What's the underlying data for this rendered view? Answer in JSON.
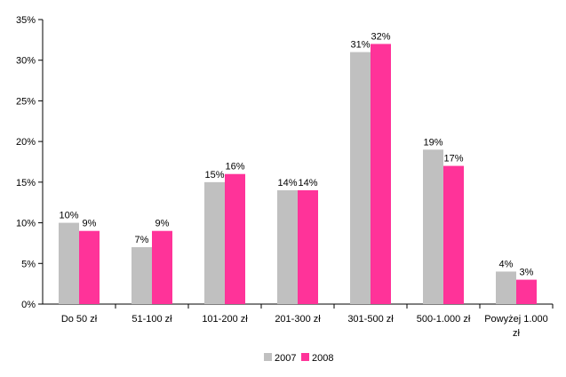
{
  "chart_data": {
    "type": "bar",
    "title": "",
    "xlabel": "",
    "ylabel": "",
    "ylim": [
      0,
      35
    ],
    "y_tick_step": 5,
    "y_tick_labels": [
      "0%",
      "5%",
      "10%",
      "15%",
      "20%",
      "25%",
      "30%",
      "35%"
    ],
    "grid": false,
    "legend_position": "bottom-center",
    "categories": [
      [
        "Do 50 zł"
      ],
      [
        "51-100 zł"
      ],
      [
        "101-200 zł"
      ],
      [
        "201-300 zł"
      ],
      [
        "301-500 zł"
      ],
      [
        "500-1.000 zł"
      ],
      [
        "Powyżej 1.000",
        "zł"
      ]
    ],
    "series": [
      {
        "name": "2007",
        "color": "#c0c0c0",
        "values": [
          10,
          7,
          15,
          14,
          31,
          19,
          4
        ],
        "labels": [
          "10%",
          "7%",
          "15%",
          "14%",
          "31%",
          "19%",
          "4%"
        ]
      },
      {
        "name": "2008",
        "color": "#ff3399",
        "values": [
          9,
          9,
          16,
          14,
          32,
          17,
          3
        ],
        "labels": [
          "9%",
          "9%",
          "16%",
          "14%",
          "32%",
          "17%",
          "3%"
        ]
      }
    ]
  }
}
